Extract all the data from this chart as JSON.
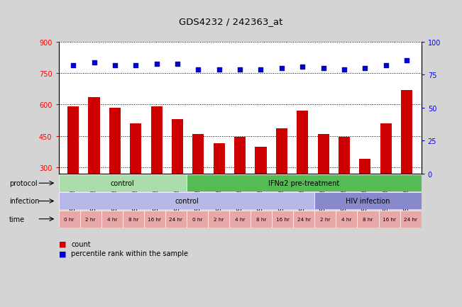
{
  "title": "GDS4232 / 242363_at",
  "samples": [
    "GSM757646",
    "GSM757647",
    "GSM757648",
    "GSM757649",
    "GSM757650",
    "GSM757651",
    "GSM757652",
    "GSM757653",
    "GSM757654",
    "GSM757655",
    "GSM757656",
    "GSM757657",
    "GSM757658",
    "GSM757659",
    "GSM757660",
    "GSM757661",
    "GSM757662"
  ],
  "bar_values": [
    590,
    635,
    585,
    510,
    592,
    530,
    460,
    415,
    445,
    400,
    485,
    570,
    460,
    445,
    340,
    510,
    670
  ],
  "dot_values": [
    82,
    84,
    82,
    82,
    83,
    83,
    79,
    79,
    79,
    79,
    80,
    81,
    80,
    79,
    80,
    82,
    86
  ],
  "ylim_left": [
    270,
    900
  ],
  "ylim_right": [
    0,
    100
  ],
  "yticks_left": [
    300,
    450,
    600,
    750,
    900
  ],
  "yticks_right": [
    0,
    25,
    50,
    75,
    100
  ],
  "bar_color": "#cc0000",
  "dot_color": "#0000cc",
  "bg_color": "#d4d4d4",
  "plot_bg": "#ffffff",
  "protocol_labels": [
    {
      "text": "control",
      "start": 0,
      "end": 6,
      "color": "#aaddaa"
    },
    {
      "text": "IFNα2 pre-treatment",
      "start": 6,
      "end": 17,
      "color": "#55bb55"
    }
  ],
  "infection_labels": [
    {
      "text": "control",
      "start": 0,
      "end": 12,
      "color": "#b8b8e8"
    },
    {
      "text": "HIV infection",
      "start": 12,
      "end": 17,
      "color": "#8888cc"
    }
  ],
  "time_labels": [
    "0 hr",
    "2 hr",
    "4 hr",
    "8 hr",
    "16 hr",
    "24 hr",
    "0 hr",
    "2 hr",
    "4 hr",
    "8 hr",
    "16 hr",
    "24 hr",
    "2 hr",
    "4 hr",
    "8 hr",
    "16 hr",
    "24 hr"
  ],
  "time_color": "#e8a8a8",
  "legend_items": [
    {
      "label": "count",
      "color": "#cc0000"
    },
    {
      "label": "percentile rank within the sample",
      "color": "#0000cc"
    }
  ]
}
